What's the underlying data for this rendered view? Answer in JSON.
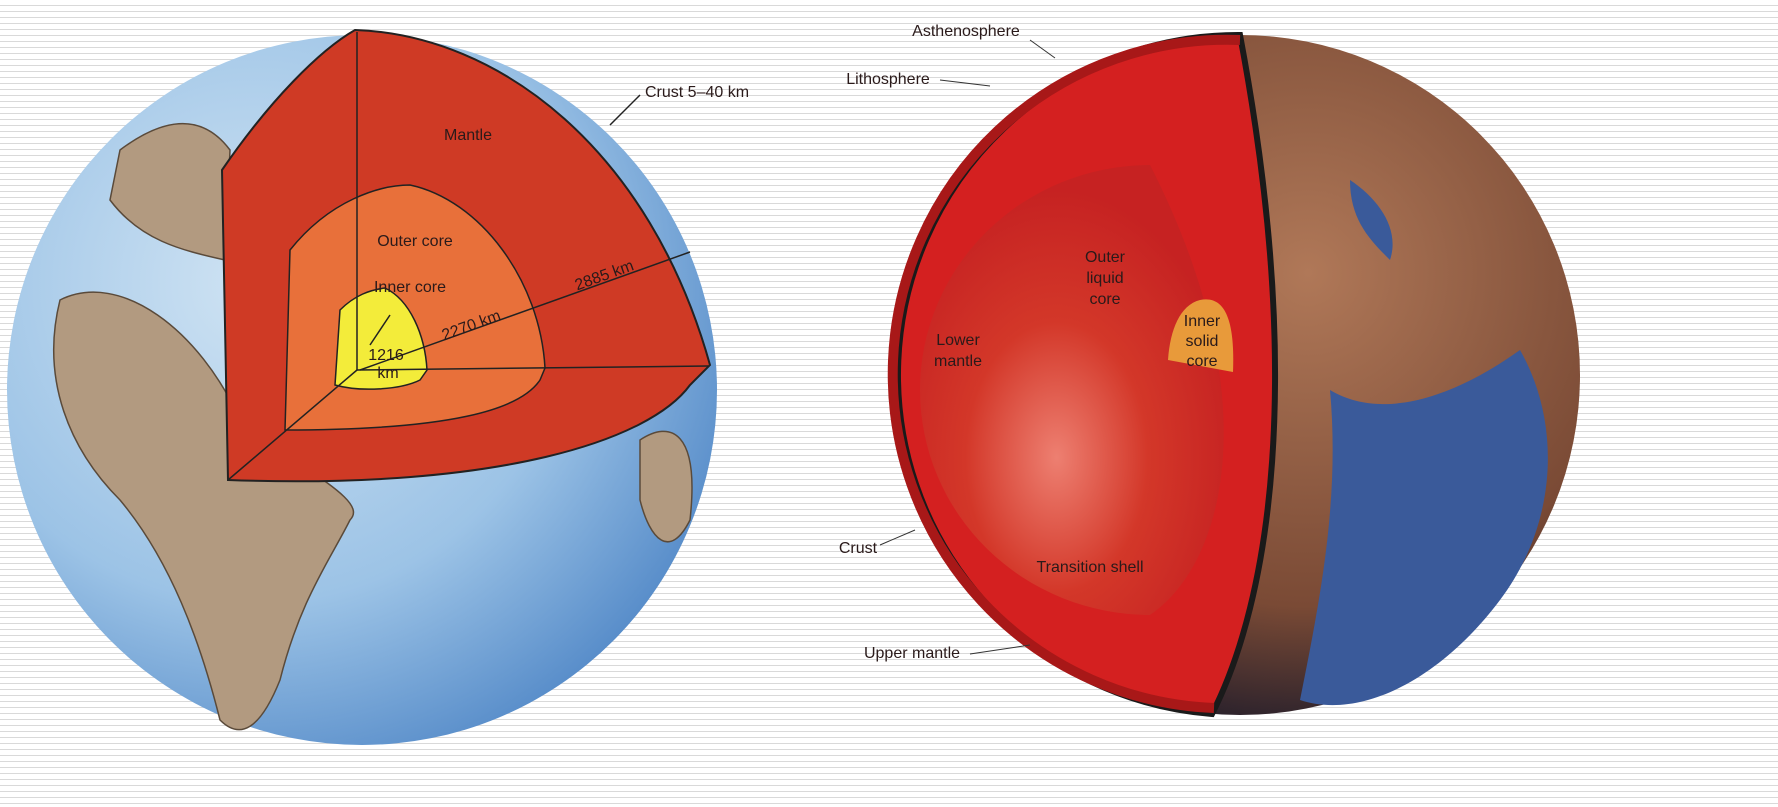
{
  "left_globe": {
    "mantle": "Mantle",
    "crust": "Crust 5–40 km",
    "outer_core": "Outer core",
    "inner_core": "Inner core",
    "inner_radius": [
      "1216",
      "km"
    ],
    "outer_core_thickness": "2270 km",
    "mantle_thickness": "2885 km"
  },
  "right_globe": {
    "asthenosphere": "Asthenosphere",
    "lithosphere": "Lithosphere",
    "outer_liquid_core": [
      "Outer",
      "liquid",
      "core"
    ],
    "inner_solid_core": [
      "Inner",
      "solid",
      "core"
    ],
    "lower_mantle": [
      "Lower",
      "mantle"
    ],
    "crust": "Crust",
    "transition_shell": "Transition shell",
    "upper_mantle": "Upper mantle"
  }
}
